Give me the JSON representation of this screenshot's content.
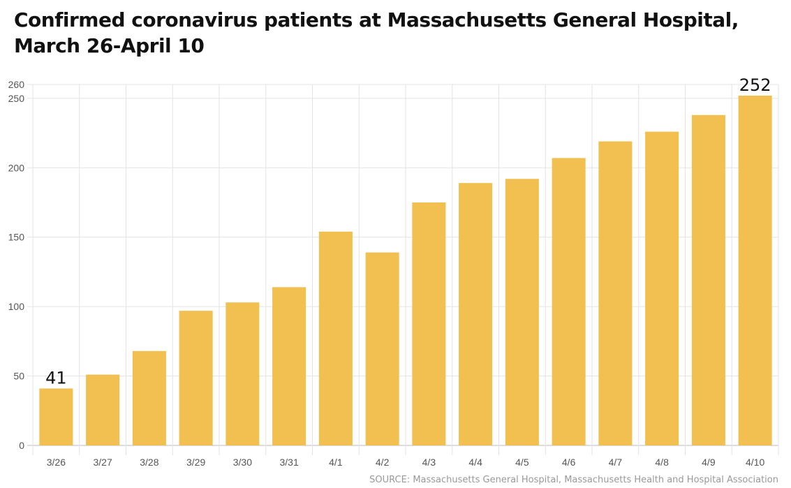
{
  "chart_data": {
    "type": "bar",
    "title": [
      "Confirmed coronavirus patients at Massachusetts General Hospital,",
      "March 26-April 10"
    ],
    "categories": [
      "3/26",
      "3/27",
      "3/28",
      "3/29",
      "3/30",
      "3/31",
      "4/1",
      "4/2",
      "4/3",
      "4/4",
      "4/5",
      "4/6",
      "4/7",
      "4/8",
      "4/9",
      "4/10"
    ],
    "values": [
      41,
      51,
      68,
      97,
      103,
      114,
      154,
      139,
      175,
      189,
      192,
      207,
      219,
      226,
      238,
      252
    ],
    "data_labels": [
      {
        "index": 0,
        "text": "41"
      },
      {
        "index": 15,
        "text": "252"
      }
    ],
    "yticks": [
      0,
      50,
      100,
      150,
      200,
      250,
      260
    ],
    "ylim": [
      0,
      260
    ],
    "xlabel": "",
    "ylabel": "",
    "grid": true,
    "bar_color": "#f2c050",
    "source": "SOURCE: Massachusetts General Hospital, Massachusetts Health and Hospital Association"
  }
}
